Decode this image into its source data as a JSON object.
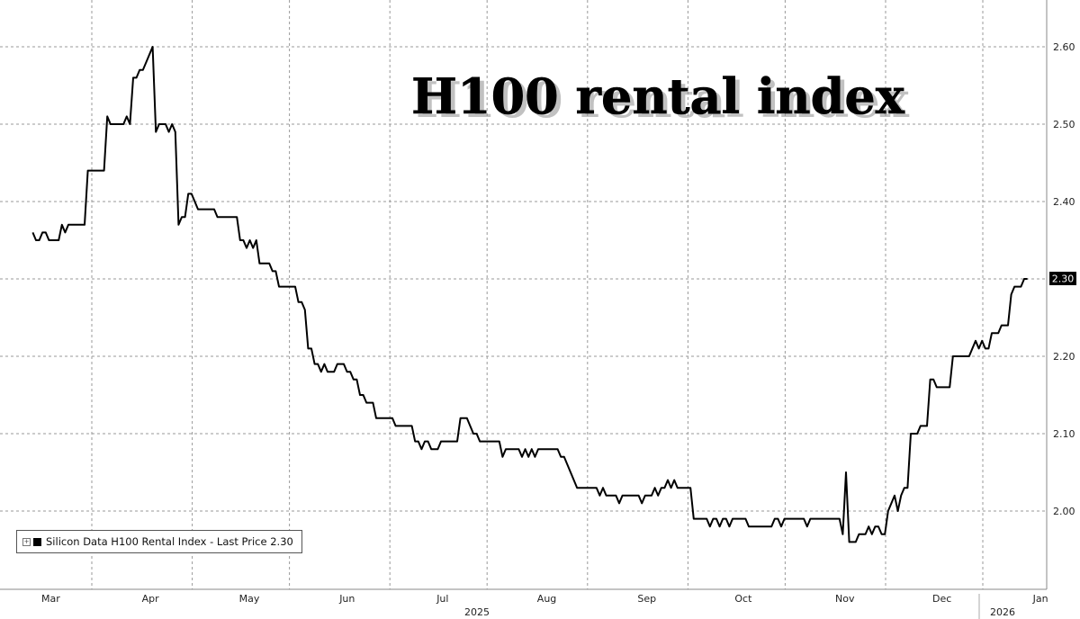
{
  "chart_data": {
    "type": "line",
    "title": "H100 rental index",
    "legend": {
      "label": "Silicon Data H100 Rental Index - Last Price 2.30",
      "placement": "bottom-left"
    },
    "last_price_label": "2.30",
    "x_ticks": [
      "Mar",
      "Apr",
      "May",
      "Jun",
      "Jul",
      "Aug",
      "Sep",
      "Oct",
      "Nov",
      "Dec",
      "Jan"
    ],
    "year_labels": [
      "2025",
      "2026"
    ],
    "y_ticks": [
      "2.00",
      "2.10",
      "2.20",
      "2.30",
      "2.40",
      "2.50",
      "2.60"
    ],
    "ylim": [
      1.92,
      2.62
    ],
    "grid": true,
    "line_color": "#000000",
    "x_unit": "days since Mar 1, 2025",
    "series": [
      {
        "name": "Silicon Data H100 Rental Index",
        "points": [
          [
            -6,
            2.36
          ],
          [
            -5,
            2.35
          ],
          [
            -4,
            2.35
          ],
          [
            -3,
            2.36
          ],
          [
            -2,
            2.36
          ],
          [
            -1,
            2.35
          ],
          [
            0,
            2.35
          ],
          [
            1,
            2.35
          ],
          [
            2,
            2.35
          ],
          [
            3,
            2.37
          ],
          [
            4,
            2.36
          ],
          [
            5,
            2.37
          ],
          [
            6,
            2.37
          ],
          [
            7,
            2.37
          ],
          [
            8,
            2.37
          ],
          [
            9,
            2.37
          ],
          [
            10,
            2.37
          ],
          [
            11,
            2.44
          ],
          [
            12,
            2.44
          ],
          [
            13,
            2.44
          ],
          [
            14,
            2.44
          ],
          [
            15,
            2.44
          ],
          [
            16,
            2.44
          ],
          [
            17,
            2.51
          ],
          [
            18,
            2.5
          ],
          [
            19,
            2.5
          ],
          [
            20,
            2.5
          ],
          [
            21,
            2.5
          ],
          [
            22,
            2.5
          ],
          [
            23,
            2.51
          ],
          [
            24,
            2.5
          ],
          [
            25,
            2.56
          ],
          [
            26,
            2.56
          ],
          [
            27,
            2.57
          ],
          [
            28,
            2.57
          ],
          [
            29,
            2.58
          ],
          [
            30,
            2.59
          ],
          [
            31,
            2.6
          ],
          [
            32,
            2.49
          ],
          [
            33,
            2.5
          ],
          [
            34,
            2.5
          ],
          [
            35,
            2.5
          ],
          [
            36,
            2.49
          ],
          [
            37,
            2.5
          ],
          [
            38,
            2.49
          ],
          [
            39,
            2.37
          ],
          [
            40,
            2.38
          ],
          [
            41,
            2.38
          ],
          [
            42,
            2.41
          ],
          [
            43,
            2.41
          ],
          [
            44,
            2.4
          ],
          [
            45,
            2.39
          ],
          [
            46,
            2.39
          ],
          [
            47,
            2.39
          ],
          [
            48,
            2.39
          ],
          [
            49,
            2.39
          ],
          [
            50,
            2.39
          ],
          [
            51,
            2.38
          ],
          [
            52,
            2.38
          ],
          [
            53,
            2.38
          ],
          [
            54,
            2.38
          ],
          [
            55,
            2.38
          ],
          [
            56,
            2.38
          ],
          [
            57,
            2.38
          ],
          [
            58,
            2.35
          ],
          [
            59,
            2.35
          ],
          [
            60,
            2.34
          ],
          [
            61,
            2.35
          ],
          [
            62,
            2.34
          ],
          [
            63,
            2.35
          ],
          [
            64,
            2.32
          ],
          [
            65,
            2.32
          ],
          [
            66,
            2.32
          ],
          [
            67,
            2.32
          ],
          [
            68,
            2.31
          ],
          [
            69,
            2.31
          ],
          [
            70,
            2.29
          ],
          [
            71,
            2.29
          ],
          [
            72,
            2.29
          ],
          [
            73,
            2.29
          ],
          [
            74,
            2.29
          ],
          [
            75,
            2.29
          ],
          [
            76,
            2.27
          ],
          [
            77,
            2.27
          ],
          [
            78,
            2.26
          ],
          [
            79,
            2.21
          ],
          [
            80,
            2.21
          ],
          [
            81,
            2.19
          ],
          [
            82,
            2.19
          ],
          [
            83,
            2.18
          ],
          [
            84,
            2.19
          ],
          [
            85,
            2.18
          ],
          [
            86,
            2.18
          ],
          [
            87,
            2.18
          ],
          [
            88,
            2.19
          ],
          [
            89,
            2.19
          ],
          [
            90,
            2.19
          ],
          [
            91,
            2.18
          ],
          [
            92,
            2.18
          ],
          [
            93,
            2.17
          ],
          [
            94,
            2.17
          ],
          [
            95,
            2.15
          ],
          [
            96,
            2.15
          ],
          [
            97,
            2.14
          ],
          [
            98,
            2.14
          ],
          [
            99,
            2.14
          ],
          [
            100,
            2.12
          ],
          [
            101,
            2.12
          ],
          [
            102,
            2.12
          ],
          [
            103,
            2.12
          ],
          [
            104,
            2.12
          ],
          [
            105,
            2.12
          ],
          [
            106,
            2.11
          ],
          [
            107,
            2.11
          ],
          [
            108,
            2.11
          ],
          [
            109,
            2.11
          ],
          [
            110,
            2.11
          ],
          [
            111,
            2.11
          ],
          [
            112,
            2.09
          ],
          [
            113,
            2.09
          ],
          [
            114,
            2.08
          ],
          [
            115,
            2.09
          ],
          [
            116,
            2.09
          ],
          [
            117,
            2.08
          ],
          [
            118,
            2.08
          ],
          [
            119,
            2.08
          ],
          [
            120,
            2.09
          ],
          [
            121,
            2.09
          ],
          [
            122,
            2.09
          ],
          [
            123,
            2.09
          ],
          [
            124,
            2.09
          ],
          [
            125,
            2.09
          ],
          [
            126,
            2.12
          ],
          [
            127,
            2.12
          ],
          [
            128,
            2.12
          ],
          [
            129,
            2.11
          ],
          [
            130,
            2.1
          ],
          [
            131,
            2.1
          ],
          [
            132,
            2.09
          ],
          [
            133,
            2.09
          ],
          [
            134,
            2.09
          ],
          [
            135,
            2.09
          ],
          [
            136,
            2.09
          ],
          [
            137,
            2.09
          ],
          [
            138,
            2.09
          ],
          [
            139,
            2.07
          ],
          [
            140,
            2.08
          ],
          [
            141,
            2.08
          ],
          [
            142,
            2.08
          ],
          [
            143,
            2.08
          ],
          [
            144,
            2.08
          ],
          [
            145,
            2.07
          ],
          [
            146,
            2.08
          ],
          [
            147,
            2.07
          ],
          [
            148,
            2.08
          ],
          [
            149,
            2.07
          ],
          [
            150,
            2.08
          ],
          [
            151,
            2.08
          ],
          [
            152,
            2.08
          ],
          [
            153,
            2.08
          ],
          [
            154,
            2.08
          ],
          [
            155,
            2.08
          ],
          [
            156,
            2.08
          ],
          [
            157,
            2.07
          ],
          [
            158,
            2.07
          ],
          [
            159,
            2.06
          ],
          [
            160,
            2.05
          ],
          [
            161,
            2.04
          ],
          [
            162,
            2.03
          ],
          [
            163,
            2.03
          ],
          [
            164,
            2.03
          ],
          [
            165,
            2.03
          ],
          [
            166,
            2.03
          ],
          [
            167,
            2.03
          ],
          [
            168,
            2.03
          ],
          [
            169,
            2.02
          ],
          [
            170,
            2.03
          ],
          [
            171,
            2.02
          ],
          [
            172,
            2.02
          ],
          [
            173,
            2.02
          ],
          [
            174,
            2.02
          ],
          [
            175,
            2.01
          ],
          [
            176,
            2.02
          ],
          [
            177,
            2.02
          ],
          [
            178,
            2.02
          ],
          [
            179,
            2.02
          ],
          [
            180,
            2.02
          ],
          [
            181,
            2.02
          ],
          [
            182,
            2.01
          ],
          [
            183,
            2.02
          ],
          [
            184,
            2.02
          ],
          [
            185,
            2.02
          ],
          [
            186,
            2.03
          ],
          [
            187,
            2.02
          ],
          [
            188,
            2.03
          ],
          [
            189,
            2.03
          ],
          [
            190,
            2.04
          ],
          [
            191,
            2.03
          ],
          [
            192,
            2.04
          ],
          [
            193,
            2.03
          ],
          [
            194,
            2.03
          ],
          [
            195,
            2.03
          ],
          [
            196,
            2.03
          ],
          [
            197,
            2.03
          ],
          [
            198,
            1.99
          ],
          [
            199,
            1.99
          ],
          [
            200,
            1.99
          ],
          [
            201,
            1.99
          ],
          [
            202,
            1.99
          ],
          [
            203,
            1.98
          ],
          [
            204,
            1.99
          ],
          [
            205,
            1.99
          ],
          [
            206,
            1.98
          ],
          [
            207,
            1.99
          ],
          [
            208,
            1.99
          ],
          [
            209,
            1.98
          ],
          [
            210,
            1.99
          ],
          [
            211,
            1.99
          ],
          [
            212,
            1.99
          ],
          [
            213,
            1.99
          ],
          [
            214,
            1.99
          ],
          [
            215,
            1.98
          ],
          [
            216,
            1.98
          ],
          [
            217,
            1.98
          ],
          [
            218,
            1.98
          ],
          [
            219,
            1.98
          ],
          [
            220,
            1.98
          ],
          [
            221,
            1.98
          ],
          [
            222,
            1.98
          ],
          [
            223,
            1.99
          ],
          [
            224,
            1.99
          ],
          [
            225,
            1.98
          ],
          [
            226,
            1.99
          ],
          [
            227,
            1.99
          ],
          [
            228,
            1.99
          ],
          [
            229,
            1.99
          ],
          [
            230,
            1.99
          ],
          [
            231,
            1.99
          ],
          [
            232,
            1.99
          ],
          [
            233,
            1.98
          ],
          [
            234,
            1.99
          ],
          [
            235,
            1.99
          ],
          [
            236,
            1.99
          ],
          [
            237,
            1.99
          ],
          [
            238,
            1.99
          ],
          [
            239,
            1.99
          ],
          [
            240,
            1.99
          ],
          [
            241,
            1.99
          ],
          [
            242,
            1.99
          ],
          [
            243,
            1.99
          ],
          [
            244,
            1.97
          ],
          [
            245,
            2.05
          ],
          [
            246,
            1.96
          ],
          [
            247,
            1.96
          ],
          [
            248,
            1.96
          ],
          [
            249,
            1.97
          ],
          [
            250,
            1.97
          ],
          [
            251,
            1.97
          ],
          [
            252,
            1.98
          ],
          [
            253,
            1.97
          ],
          [
            254,
            1.98
          ],
          [
            255,
            1.98
          ],
          [
            256,
            1.97
          ],
          [
            257,
            1.97
          ],
          [
            258,
            2.0
          ],
          [
            259,
            2.01
          ],
          [
            260,
            2.02
          ],
          [
            261,
            2.0
          ],
          [
            262,
            2.02
          ],
          [
            263,
            2.03
          ],
          [
            264,
            2.03
          ],
          [
            265,
            2.1
          ],
          [
            266,
            2.1
          ],
          [
            267,
            2.1
          ],
          [
            268,
            2.11
          ],
          [
            269,
            2.11
          ],
          [
            270,
            2.11
          ],
          [
            271,
            2.17
          ],
          [
            272,
            2.17
          ],
          [
            273,
            2.16
          ],
          [
            274,
            2.16
          ],
          [
            275,
            2.16
          ],
          [
            276,
            2.16
          ],
          [
            277,
            2.16
          ],
          [
            278,
            2.2
          ],
          [
            279,
            2.2
          ],
          [
            280,
            2.2
          ],
          [
            281,
            2.2
          ],
          [
            282,
            2.2
          ],
          [
            283,
            2.2
          ],
          [
            284,
            2.21
          ],
          [
            285,
            2.22
          ],
          [
            286,
            2.21
          ],
          [
            287,
            2.22
          ],
          [
            288,
            2.21
          ],
          [
            289,
            2.21
          ],
          [
            290,
            2.23
          ],
          [
            291,
            2.23
          ],
          [
            292,
            2.23
          ],
          [
            293,
            2.24
          ],
          [
            294,
            2.24
          ],
          [
            295,
            2.24
          ],
          [
            296,
            2.28
          ],
          [
            297,
            2.29
          ],
          [
            298,
            2.29
          ],
          [
            299,
            2.29
          ],
          [
            300,
            2.3
          ],
          [
            301,
            2.3
          ]
        ]
      }
    ]
  }
}
